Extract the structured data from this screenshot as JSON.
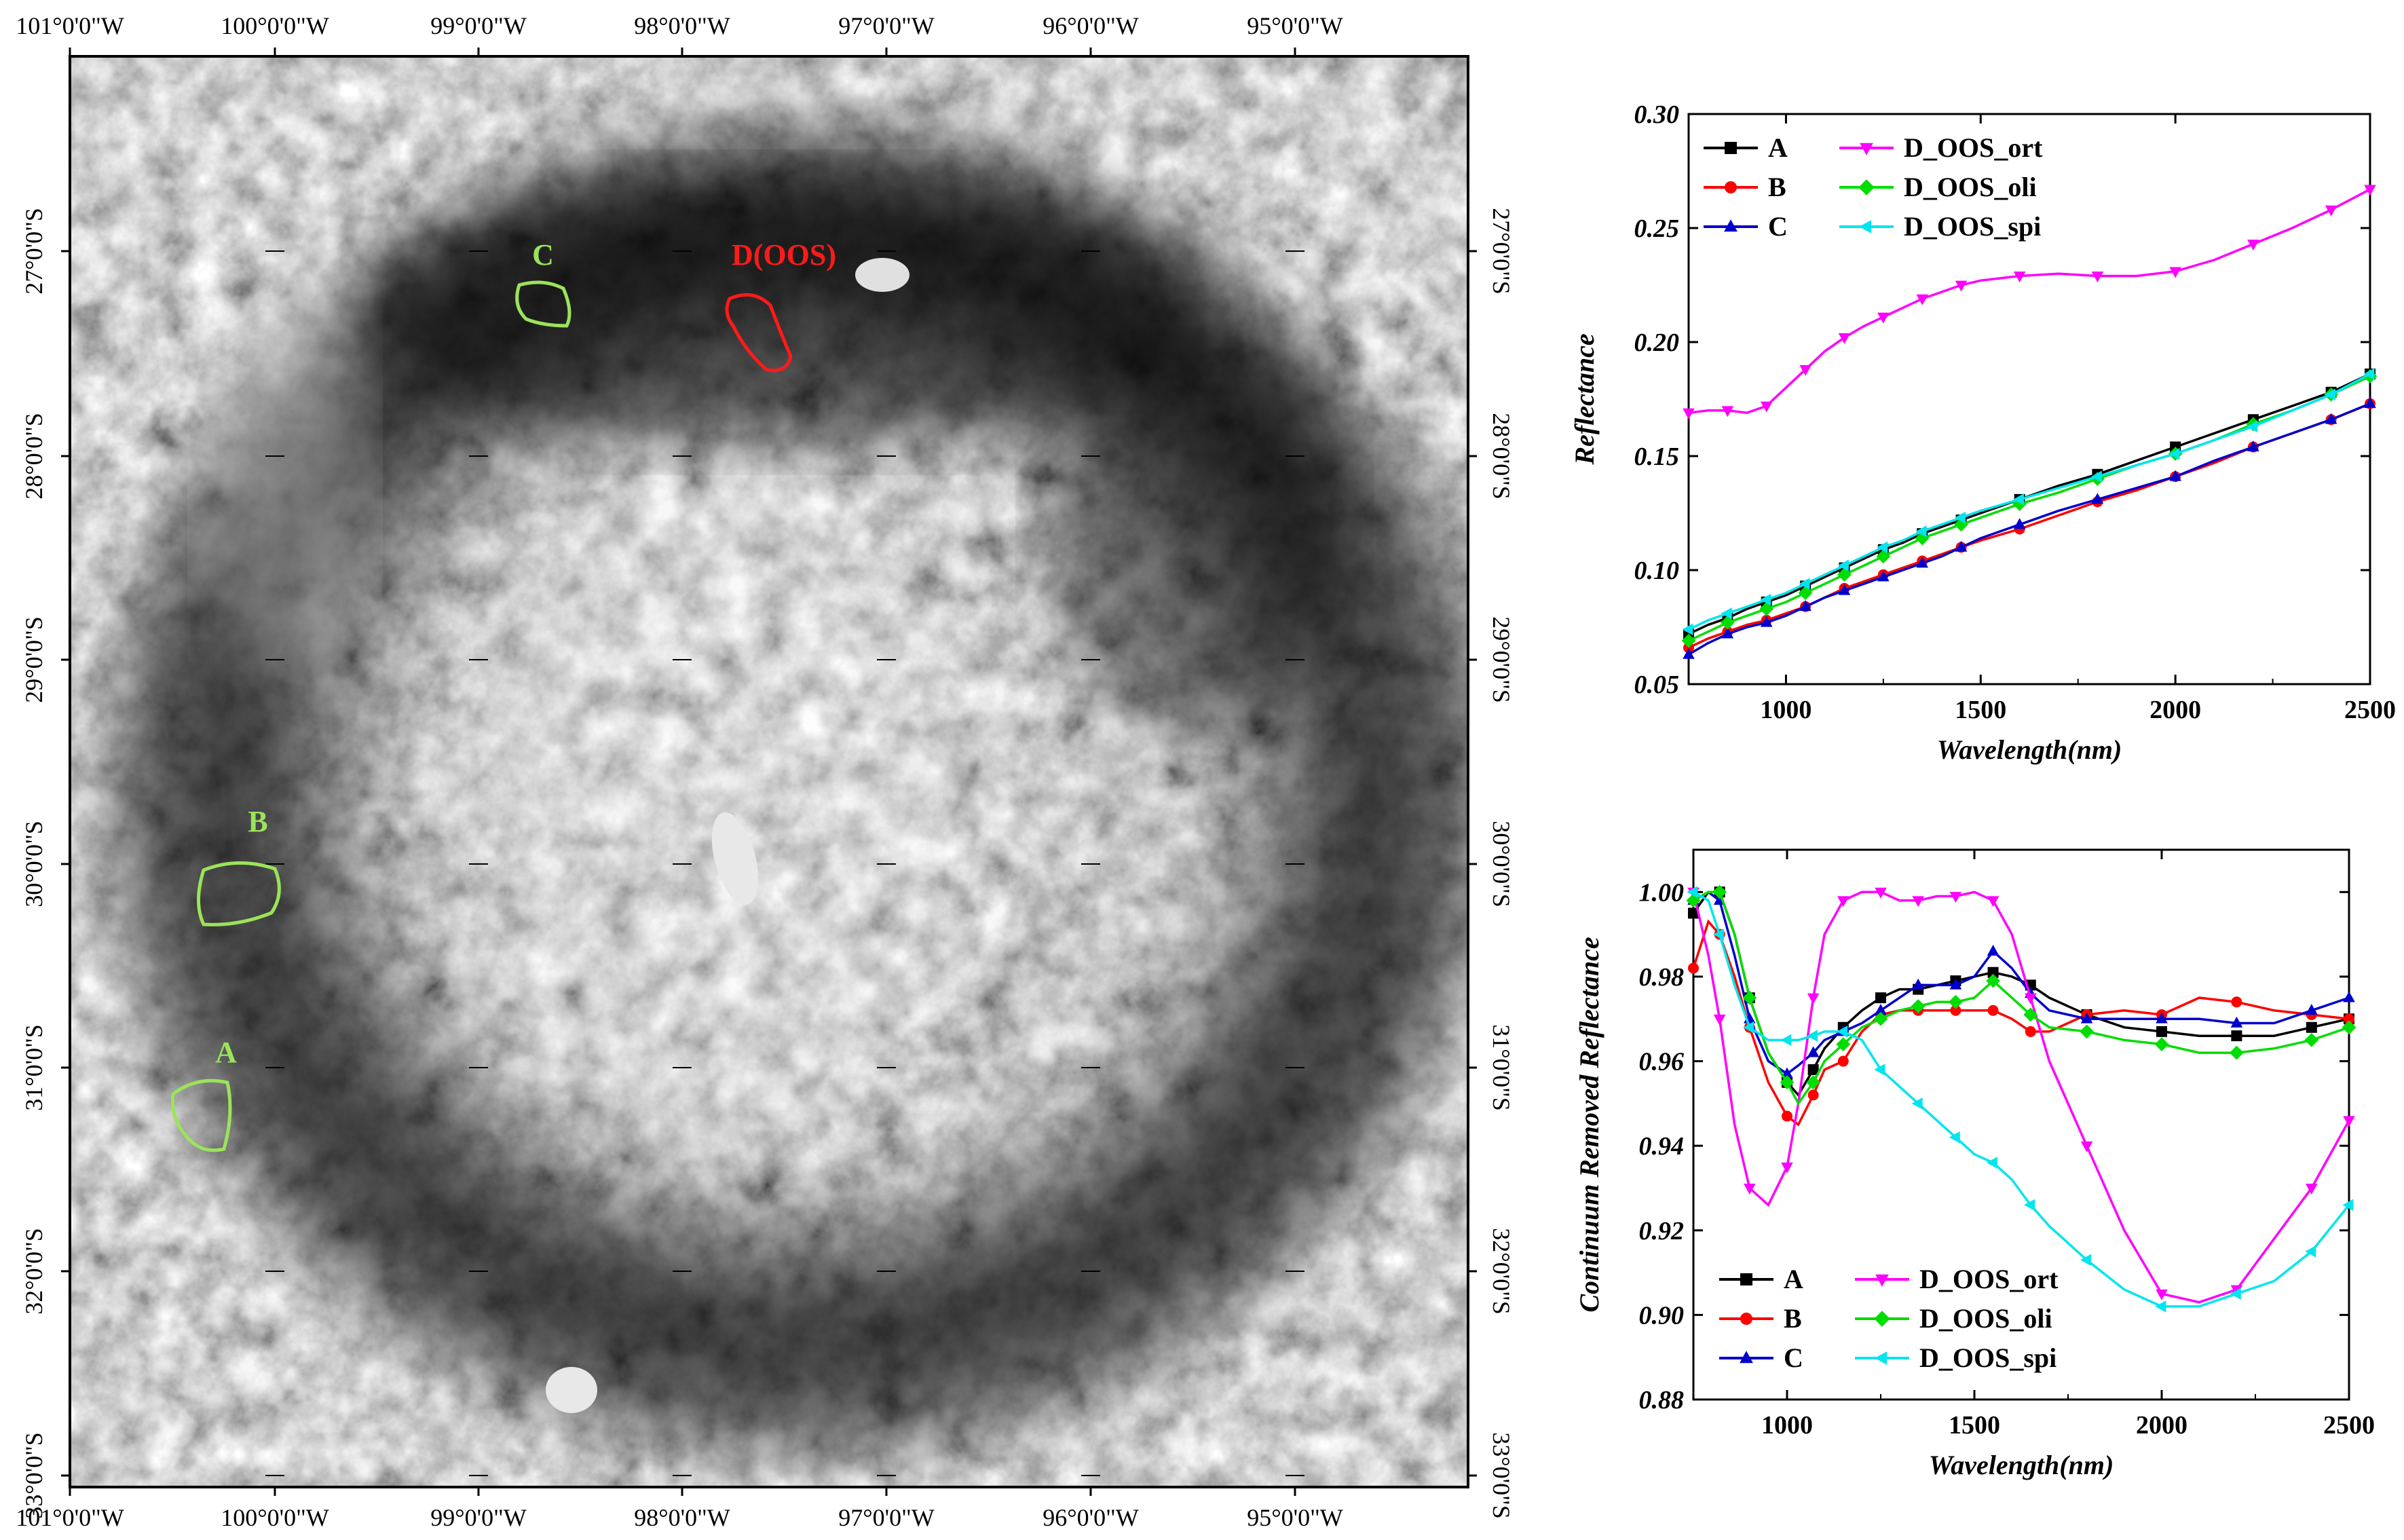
{
  "map": {
    "lon_labels": [
      "101°0'0\"W",
      "100°0'0\"W",
      "99°0'0\"W",
      "98°0'0\"W",
      "97°0'0\"W",
      "96°0'0\"W",
      "95°0'0\"W"
    ],
    "lat_labels": [
      "27°0'0\"S",
      "28°0'0\"S",
      "29°0'0\"S",
      "30°0'0\"S",
      "31°0'0\"S",
      "32°0'0\"S",
      "33°0'0\"S"
    ],
    "regions": [
      {
        "label": "A",
        "color": "#9be35a"
      },
      {
        "label": "B",
        "color": "#9be35a"
      },
      {
        "label": "C",
        "color": "#9be35a"
      },
      {
        "label": "D(OOS)",
        "color": "#ff1a1a"
      }
    ]
  },
  "chart_data": [
    {
      "type": "line",
      "title": "",
      "xlabel": "Wavelength(nm)",
      "ylabel": "Reflectance",
      "xlim": [
        750,
        2500
      ],
      "ylim": [
        0.05,
        0.3
      ],
      "xticks": [
        "1000",
        "1500",
        "2000",
        "2500"
      ],
      "yticks": [
        "0.05",
        "0.10",
        "0.15",
        "0.20",
        "0.25",
        "0.30"
      ],
      "legend_position": "top-left",
      "series": [
        {
          "name": "A",
          "color": "#000000",
          "marker": "square",
          "x": [
            750,
            800,
            850,
            900,
            950,
            1000,
            1050,
            1100,
            1150,
            1200,
            1250,
            1300,
            1350,
            1400,
            1450,
            1500,
            1600,
            1700,
            1800,
            1900,
            2000,
            2100,
            2200,
            2300,
            2400,
            2500
          ],
          "y": [
            0.072,
            0.076,
            0.079,
            0.083,
            0.086,
            0.089,
            0.093,
            0.097,
            0.101,
            0.105,
            0.109,
            0.112,
            0.116,
            0.119,
            0.122,
            0.125,
            0.131,
            0.137,
            0.142,
            0.148,
            0.154,
            0.16,
            0.166,
            0.172,
            0.178,
            0.186
          ]
        },
        {
          "name": "B",
          "color": "#ff0000",
          "marker": "circle",
          "x": [
            750,
            800,
            850,
            900,
            950,
            1000,
            1050,
            1100,
            1150,
            1200,
            1250,
            1300,
            1350,
            1400,
            1450,
            1500,
            1600,
            1700,
            1800,
            1900,
            2000,
            2100,
            2200,
            2300,
            2400,
            2500
          ],
          "y": [
            0.066,
            0.07,
            0.073,
            0.076,
            0.078,
            0.081,
            0.084,
            0.088,
            0.092,
            0.095,
            0.098,
            0.101,
            0.104,
            0.107,
            0.11,
            0.113,
            0.118,
            0.124,
            0.13,
            0.135,
            0.141,
            0.147,
            0.154,
            0.16,
            0.166,
            0.173
          ]
        },
        {
          "name": "C",
          "color": "#0000cc",
          "marker": "triangle",
          "x": [
            750,
            800,
            850,
            900,
            950,
            1000,
            1050,
            1100,
            1150,
            1200,
            1250,
            1300,
            1350,
            1400,
            1450,
            1500,
            1600,
            1700,
            1800,
            1900,
            2000,
            2100,
            2200,
            2300,
            2400,
            2500
          ],
          "y": [
            0.063,
            0.068,
            0.072,
            0.075,
            0.077,
            0.08,
            0.084,
            0.088,
            0.091,
            0.094,
            0.097,
            0.1,
            0.103,
            0.106,
            0.11,
            0.114,
            0.12,
            0.126,
            0.131,
            0.136,
            0.141,
            0.148,
            0.154,
            0.16,
            0.166,
            0.173
          ]
        },
        {
          "name": "D_OOS_ort",
          "color": "#ff00ff",
          "marker": "triangle-down",
          "x": [
            750,
            800,
            850,
            900,
            950,
            1000,
            1050,
            1100,
            1150,
            1200,
            1250,
            1300,
            1350,
            1400,
            1450,
            1500,
            1600,
            1700,
            1800,
            1900,
            2000,
            2100,
            2200,
            2300,
            2400,
            2500
          ],
          "y": [
            0.169,
            0.17,
            0.17,
            0.169,
            0.172,
            0.18,
            0.188,
            0.196,
            0.202,
            0.207,
            0.211,
            0.215,
            0.219,
            0.222,
            0.225,
            0.227,
            0.229,
            0.23,
            0.229,
            0.229,
            0.231,
            0.236,
            0.243,
            0.25,
            0.258,
            0.267
          ]
        },
        {
          "name": "D_OOS_oli",
          "color": "#00dd00",
          "marker": "diamond",
          "x": [
            750,
            800,
            850,
            900,
            950,
            1000,
            1050,
            1100,
            1150,
            1200,
            1250,
            1300,
            1350,
            1400,
            1450,
            1500,
            1600,
            1700,
            1800,
            1900,
            2000,
            2100,
            2200,
            2300,
            2400,
            2500
          ],
          "y": [
            0.069,
            0.073,
            0.077,
            0.08,
            0.083,
            0.086,
            0.09,
            0.094,
            0.098,
            0.102,
            0.106,
            0.11,
            0.114,
            0.117,
            0.12,
            0.123,
            0.129,
            0.134,
            0.14,
            0.146,
            0.151,
            0.157,
            0.164,
            0.17,
            0.177,
            0.185
          ]
        },
        {
          "name": "D_OOS_spi",
          "color": "#00e5ee",
          "marker": "triangle-left",
          "x": [
            750,
            800,
            850,
            900,
            950,
            1000,
            1050,
            1100,
            1150,
            1200,
            1250,
            1300,
            1350,
            1400,
            1450,
            1500,
            1600,
            1700,
            1800,
            1900,
            2000,
            2100,
            2200,
            2300,
            2400,
            2500
          ],
          "y": [
            0.074,
            0.078,
            0.081,
            0.084,
            0.087,
            0.09,
            0.094,
            0.098,
            0.102,
            0.106,
            0.11,
            0.113,
            0.117,
            0.12,
            0.123,
            0.126,
            0.131,
            0.136,
            0.141,
            0.146,
            0.151,
            0.157,
            0.163,
            0.17,
            0.177,
            0.186
          ]
        }
      ]
    },
    {
      "type": "line",
      "title": "",
      "xlabel": "Wavelength(nm)",
      "ylabel": "Continuum Removed Reflectance",
      "xlim": [
        750,
        2500
      ],
      "ylim": [
        0.88,
        1.01
      ],
      "xticks": [
        "1000",
        "1500",
        "2000",
        "2500"
      ],
      "yticks": [
        "0.88",
        "0.90",
        "0.92",
        "0.94",
        "0.96",
        "0.98",
        "1.00"
      ],
      "legend_position": "bottom-left",
      "series": [
        {
          "name": "A",
          "color": "#000000",
          "marker": "square",
          "x": [
            750,
            790,
            820,
            860,
            900,
            950,
            1000,
            1030,
            1070,
            1100,
            1150,
            1200,
            1250,
            1300,
            1350,
            1400,
            1450,
            1500,
            1550,
            1600,
            1650,
            1700,
            1800,
            1900,
            2000,
            2100,
            2200,
            2300,
            2400,
            2500
          ],
          "y": [
            0.995,
            1.0,
            1.0,
            0.99,
            0.975,
            0.962,
            0.955,
            0.952,
            0.958,
            0.963,
            0.968,
            0.972,
            0.975,
            0.977,
            0.977,
            0.978,
            0.979,
            0.98,
            0.981,
            0.98,
            0.978,
            0.975,
            0.971,
            0.968,
            0.967,
            0.966,
            0.966,
            0.966,
            0.968,
            0.97
          ]
        },
        {
          "name": "B",
          "color": "#ff0000",
          "marker": "circle",
          "x": [
            750,
            790,
            820,
            860,
            900,
            950,
            1000,
            1030,
            1070,
            1100,
            1150,
            1200,
            1250,
            1300,
            1350,
            1400,
            1450,
            1500,
            1550,
            1600,
            1650,
            1700,
            1800,
            1900,
            2000,
            2100,
            2200,
            2300,
            2400,
            2500
          ],
          "y": [
            0.982,
            0.993,
            0.99,
            0.98,
            0.968,
            0.955,
            0.947,
            0.945,
            0.952,
            0.958,
            0.96,
            0.967,
            0.971,
            0.972,
            0.972,
            0.972,
            0.972,
            0.972,
            0.972,
            0.97,
            0.967,
            0.967,
            0.971,
            0.972,
            0.971,
            0.975,
            0.974,
            0.972,
            0.971,
            0.97
          ]
        },
        {
          "name": "C",
          "color": "#0000cc",
          "marker": "triangle",
          "x": [
            750,
            790,
            820,
            860,
            900,
            950,
            1000,
            1030,
            1070,
            1100,
            1150,
            1200,
            1250,
            1300,
            1350,
            1400,
            1450,
            1500,
            1550,
            1600,
            1650,
            1700,
            1800,
            1900,
            2000,
            2100,
            2200,
            2300,
            2400,
            2500
          ],
          "y": [
            0.998,
            1.0,
            0.998,
            0.985,
            0.97,
            0.96,
            0.957,
            0.959,
            0.962,
            0.965,
            0.967,
            0.969,
            0.972,
            0.975,
            0.978,
            0.978,
            0.978,
            0.98,
            0.986,
            0.982,
            0.976,
            0.972,
            0.97,
            0.97,
            0.97,
            0.97,
            0.969,
            0.969,
            0.972,
            0.975
          ]
        },
        {
          "name": "D_OOS_ort",
          "color": "#ff00ff",
          "marker": "triangle-down",
          "x": [
            750,
            790,
            820,
            860,
            900,
            950,
            1000,
            1030,
            1070,
            1100,
            1150,
            1200,
            1250,
            1300,
            1350,
            1400,
            1450,
            1500,
            1550,
            1600,
            1650,
            1700,
            1800,
            1900,
            2000,
            2100,
            2200,
            2300,
            2400,
            2500
          ],
          "y": [
            1.0,
            0.985,
            0.97,
            0.945,
            0.93,
            0.926,
            0.935,
            0.95,
            0.975,
            0.99,
            0.998,
            1.0,
            1.0,
            0.998,
            0.998,
            0.999,
            0.999,
            1.0,
            0.998,
            0.99,
            0.975,
            0.96,
            0.94,
            0.92,
            0.905,
            0.903,
            0.906,
            0.918,
            0.93,
            0.946
          ]
        },
        {
          "name": "D_OOS_oli",
          "color": "#00dd00",
          "marker": "diamond",
          "x": [
            750,
            790,
            820,
            860,
            900,
            950,
            1000,
            1030,
            1070,
            1100,
            1150,
            1200,
            1250,
            1300,
            1350,
            1400,
            1450,
            1500,
            1550,
            1600,
            1650,
            1700,
            1800,
            1900,
            2000,
            2100,
            2200,
            2300,
            2400,
            2500
          ],
          "y": [
            0.998,
            1.0,
            1.0,
            0.99,
            0.975,
            0.962,
            0.955,
            0.95,
            0.955,
            0.96,
            0.964,
            0.968,
            0.97,
            0.972,
            0.973,
            0.974,
            0.974,
            0.975,
            0.979,
            0.975,
            0.971,
            0.968,
            0.967,
            0.965,
            0.964,
            0.962,
            0.962,
            0.963,
            0.965,
            0.968
          ]
        },
        {
          "name": "D_OOS_spi",
          "color": "#00e5ee",
          "marker": "triangle-left",
          "x": [
            750,
            790,
            820,
            860,
            900,
            950,
            1000,
            1030,
            1070,
            1100,
            1150,
            1200,
            1250,
            1300,
            1350,
            1400,
            1450,
            1500,
            1550,
            1600,
            1650,
            1700,
            1800,
            1900,
            2000,
            2100,
            2200,
            2300,
            2400,
            2500
          ],
          "y": [
            1.0,
            0.998,
            0.99,
            0.978,
            0.968,
            0.965,
            0.965,
            0.965,
            0.966,
            0.967,
            0.967,
            0.965,
            0.958,
            0.954,
            0.95,
            0.946,
            0.942,
            0.938,
            0.936,
            0.932,
            0.926,
            0.921,
            0.913,
            0.906,
            0.902,
            0.902,
            0.905,
            0.908,
            0.915,
            0.926
          ]
        }
      ]
    }
  ]
}
